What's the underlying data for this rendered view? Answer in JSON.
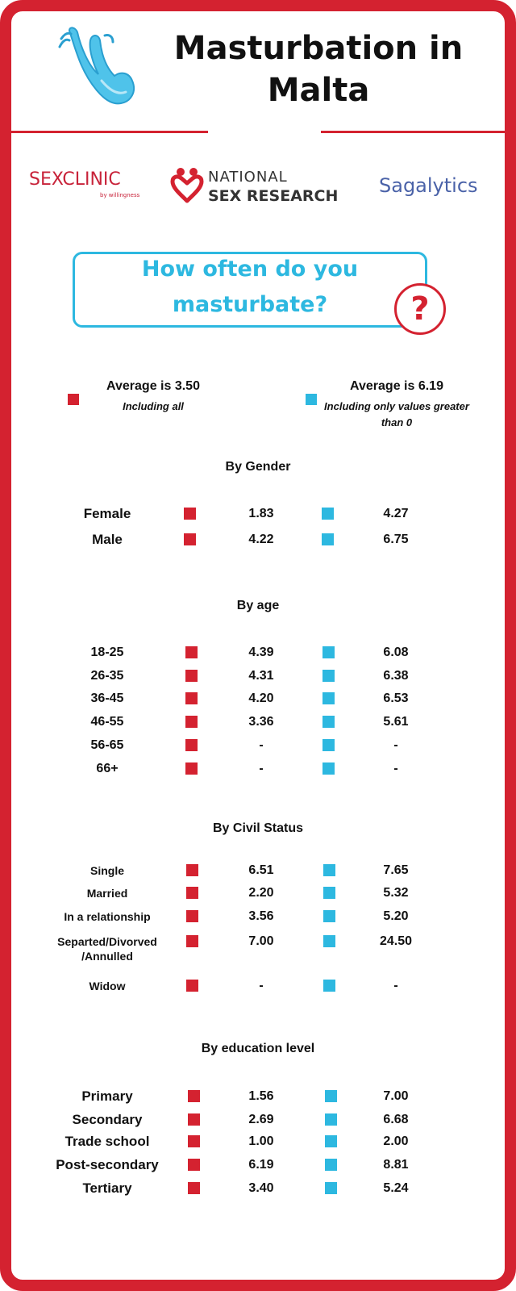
{
  "title": "Masturbation in Malta",
  "logos": {
    "sexclinic_main": "SEXCLINIC",
    "sexclinic_sub": "by willingness",
    "nsr_line1": "NATIONAL",
    "nsr_line2": "SEX RESEARCH",
    "sagalytics": "Sagalytics"
  },
  "question": "How often do you masturbate?",
  "question_mark": "?",
  "legend": {
    "red": {
      "label": "Average is 3.50",
      "note": "Including all",
      "color": "#d42230"
    },
    "blue": {
      "label": "Average is 6.19",
      "note": "Including only values greater than 0",
      "color": "#2db8e0"
    }
  },
  "sections": [
    {
      "title": "By Gender",
      "rows": [
        {
          "label": "Female",
          "all": "1.83",
          "positive": "4.27"
        },
        {
          "label": "Male",
          "all": "4.22",
          "positive": "6.75"
        }
      ]
    },
    {
      "title": "By age",
      "rows": [
        {
          "label": "18-25",
          "all": "4.39",
          "positive": "6.08"
        },
        {
          "label": "26-35",
          "all": "4.31",
          "positive": "6.38"
        },
        {
          "label": "36-45",
          "all": "4.20",
          "positive": "6.53"
        },
        {
          "label": "46-55",
          "all": "3.36",
          "positive": "5.61"
        },
        {
          "label": "56-65",
          "all": "-",
          "positive": "-"
        },
        {
          "label": "66+",
          "all": "-",
          "positive": "-"
        }
      ]
    },
    {
      "title": "By Civil Status",
      "rows": [
        {
          "label": "Single",
          "all": "6.51",
          "positive": "7.65"
        },
        {
          "label": "Married",
          "all": "2.20",
          "positive": "5.32"
        },
        {
          "label": "In a relationship",
          "all": "3.56",
          "positive": "5.20"
        },
        {
          "label": "Separted/Divorved\n/Annulled",
          "all": "7.00",
          "positive": "24.50"
        },
        {
          "label": "Widow",
          "all": "-",
          "positive": "-"
        }
      ]
    },
    {
      "title": "By education level",
      "rows": [
        {
          "label": "Primary",
          "all": "1.56",
          "positive": "7.00"
        },
        {
          "label": "Secondary",
          "all": "2.69",
          "positive": "6.68"
        },
        {
          "label": "Trade school",
          "all": "1.00",
          "positive": "2.00"
        },
        {
          "label": "Post-secondary",
          "all": "6.19",
          "positive": "8.81"
        },
        {
          "label": "Tertiary",
          "all": "3.40",
          "positive": "5.24"
        }
      ]
    }
  ]
}
